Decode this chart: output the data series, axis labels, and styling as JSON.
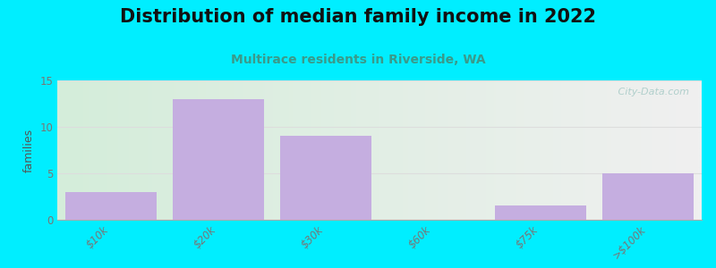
{
  "title": "Distribution of median family income in 2022",
  "subtitle": "Multirace residents in Riverside, WA",
  "categories": [
    "$10k",
    "$20k",
    "$30k",
    "$60k",
    "$75k",
    ">$100k"
  ],
  "values": [
    3,
    13,
    9,
    0,
    1.5,
    5
  ],
  "bar_color": "#c5aee0",
  "bar_edgecolor": "#c5aee0",
  "background_outer": "#00eeff",
  "bg_left_color": "#d4edda",
  "bg_right_color": "#f0f0f0",
  "ylabel": "families",
  "ylim": [
    0,
    15
  ],
  "yticks": [
    0,
    5,
    10,
    15
  ],
  "grid_color": "#dddddd",
  "title_fontsize": 15,
  "subtitle_fontsize": 10,
  "subtitle_color": "#3a9a8a",
  "watermark": " City-Data.com",
  "watermark_color": "#aaccc8",
  "tick_label_color": "#777777",
  "bar_width": 0.85,
  "ylabel_color": "#555555"
}
